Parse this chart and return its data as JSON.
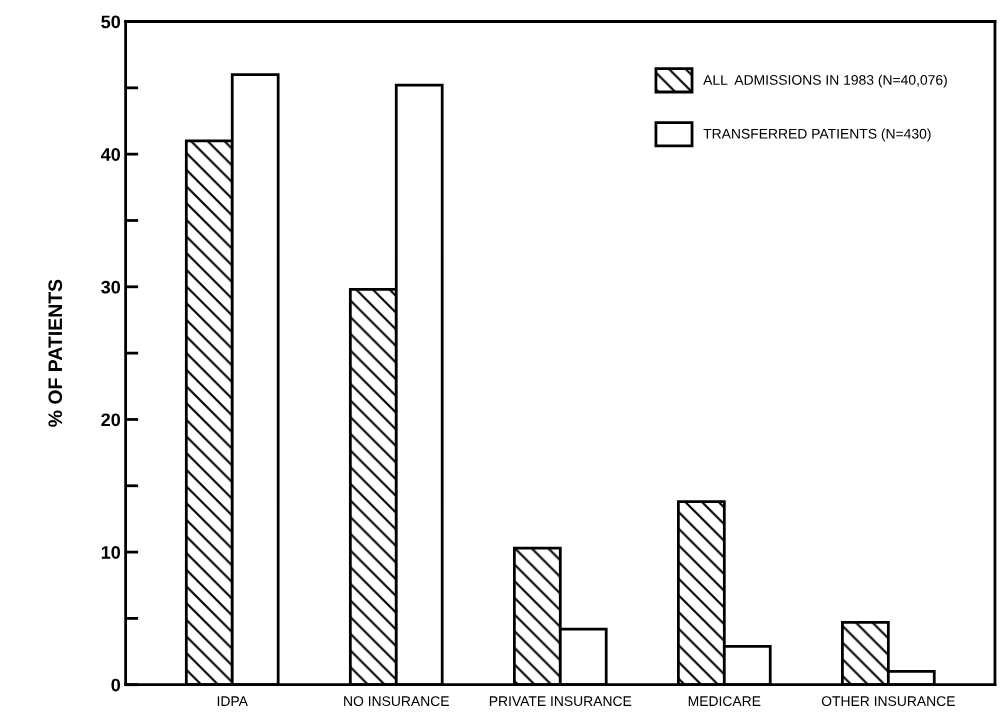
{
  "chart_data": {
    "type": "bar",
    "ylabel": "% OF PATIENTS",
    "categories": [
      "IDPA",
      "NO INSURANCE",
      "PRIVATE INSURANCE",
      "MEDICARE",
      "OTHER INSURANCE"
    ],
    "series": [
      {
        "name": "ALL  ADMISSIONS IN 1983 (N=40,076)",
        "color": "#000000",
        "values": [
          41.0,
          29.8,
          10.3,
          13.8,
          4.7
        ]
      },
      {
        "name": "TRANSFERRED PATIENTS (N=430)",
        "color": "#ffffff",
        "values": [
          46.0,
          45.2,
          4.2,
          2.9,
          1.0
        ]
      }
    ],
    "ylim": [
      0,
      50
    ],
    "yticks": [
      0,
      {
        "value": 5,
        "label": null
      },
      10,
      {
        "value": 15,
        "label": null
      },
      20,
      {
        "value": 25,
        "label": null
      },
      30,
      {
        "value": 35,
        "label": null
      },
      40,
      {
        "value": 45,
        "label": null
      },
      50
    ],
    "grid": false,
    "legend": "top right"
  }
}
